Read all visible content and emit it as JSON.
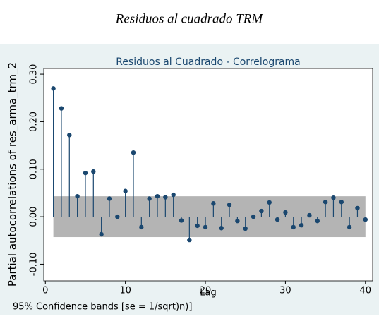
{
  "caption": "Residuos al cuadrado TRM",
  "chart_data": {
    "type": "stem",
    "title": "Residuos al Cuadrado - Correlograma",
    "x_label": "Lag",
    "y_label": "Partial autocorrelations of res_arma_trm_2",
    "note": "95% Confidence bands [se = 1/sqrt)n)]",
    "x": [
      1,
      2,
      3,
      4,
      5,
      6,
      7,
      8,
      9,
      10,
      11,
      12,
      13,
      14,
      15,
      16,
      17,
      18,
      19,
      20,
      21,
      22,
      23,
      24,
      25,
      26,
      27,
      28,
      29,
      30,
      31,
      32,
      33,
      34,
      35,
      36,
      37,
      38,
      39,
      40
    ],
    "values": [
      0.27,
      0.228,
      0.172,
      0.043,
      0.092,
      0.095,
      -0.037,
      0.038,
      0.0,
      0.054,
      0.135,
      -0.022,
      0.038,
      0.043,
      0.041,
      0.046,
      -0.008,
      -0.049,
      -0.019,
      -0.022,
      0.028,
      -0.024,
      0.025,
      -0.009,
      -0.025,
      0.0,
      0.012,
      0.03,
      -0.006,
      0.009,
      -0.022,
      -0.018,
      0.003,
      -0.009,
      0.031,
      0.04,
      0.031,
      -0.022,
      0.018,
      -0.006
    ],
    "color": "#1a476f",
    "ci_upper": 0.043,
    "ci_lower": -0.043,
    "band_color": "#b4b4b4",
    "xlim": [
      -0.2,
      40.9
    ],
    "ylim": [
      -0.135,
      0.312
    ],
    "xticks": [
      0,
      10,
      20,
      30,
      40
    ],
    "yticks": [
      {
        "value": -0.1,
        "label": "-0.10"
      },
      {
        "value": 0,
        "label": "0.00"
      },
      {
        "value": 0.1,
        "label": "0.10"
      },
      {
        "value": 0.2,
        "label": "0.20"
      },
      {
        "value": 0.3,
        "label": "0.30"
      }
    ]
  }
}
